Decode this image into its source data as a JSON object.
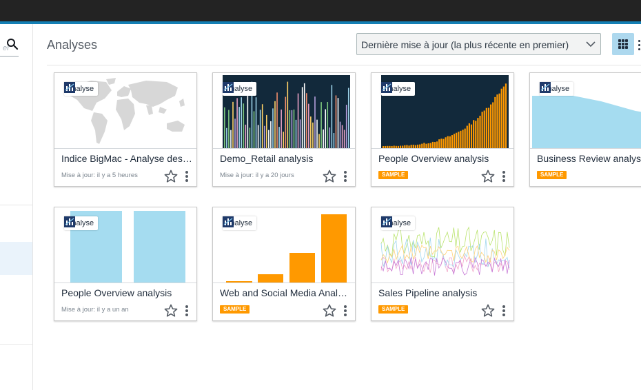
{
  "header": {
    "title": "Analyses",
    "sort_selected": "Dernière mise à jour (la plus récente en premier)",
    "grid_view_icon": "grid-icon",
    "list_view_icon": "more-vertical-icon"
  },
  "sidebar": {
    "search_hint": "er",
    "search_icon": "search-icon"
  },
  "colors": {
    "accent_bar": "#147fb4",
    "sample_tag": "#ff9900",
    "grid_button": "#add8ee",
    "chart_light_blue": "#a5dcf0",
    "chart_orange": "#ff9900",
    "chart_dark_bg": "#12293b"
  },
  "cards": [
    {
      "badge": "Analyse",
      "title": "Indice BigMac - Analyse des…",
      "meta": "Mise à jour: il y a 5 heures",
      "thumbnail": "world-map"
    },
    {
      "badge": "Analyse",
      "title": "Demo_Retail analysis",
      "meta": "Mise à jour: il y a 20 jours",
      "thumbnail": "multicolor-bars-dark"
    },
    {
      "badge": "Analyse",
      "title": "People Overview analysis",
      "sample": "SAMPLE",
      "thumbnail": "orange-bars-dark"
    },
    {
      "badge": "Analyse",
      "title": "Business Review analysis",
      "sample": "SAMPLE",
      "thumbnail": "blue-area"
    },
    {
      "badge": "Analyse",
      "title": "People Overview analysis",
      "meta": "Mise à jour: il y a un an",
      "thumbnail": "two-blue-bars"
    },
    {
      "badge": "Analyse",
      "title": "Web and Social Media Anal…",
      "sample": "SAMPLE",
      "thumbnail": "orange-bars"
    },
    {
      "badge": "Analyse",
      "title": "Sales Pipeline analysis",
      "sample": "SAMPLE",
      "thumbnail": "multi-line"
    }
  ]
}
